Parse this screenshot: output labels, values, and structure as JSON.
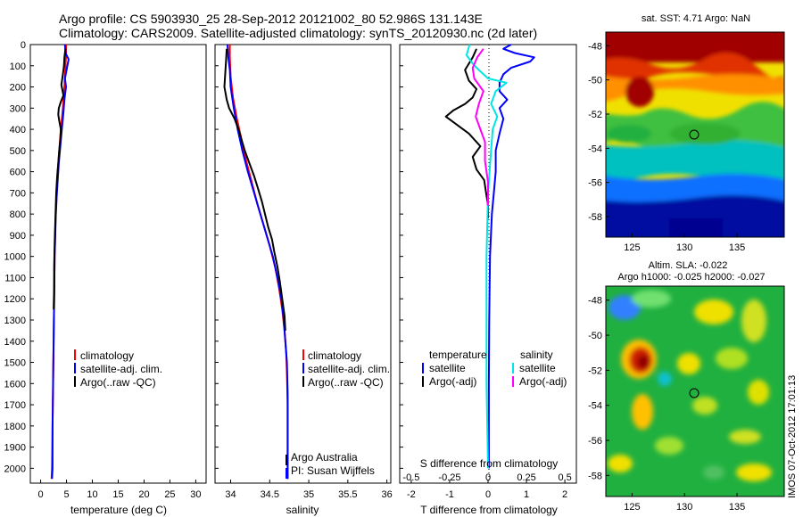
{
  "header": {
    "line1": "Argo profile: CS 5903930_25 28-Sep-2012 20121002_80 52.986S 131.143E",
    "line2": "Climatology: CARS2009. Satellite-adjusted climatology: synTS_20120930.nc (2d later)"
  },
  "colors": {
    "climatology": "#ff0000",
    "satellite": "#0000ff",
    "argo": "#000000",
    "sal_satellite": "#00e5e5",
    "sal_argo": "#ff00ff"
  },
  "panels": {
    "temperature": {
      "xlabel": "temperature (deg C)",
      "legend": [
        "climatology",
        "satellite-adj. clim.",
        "Argo(..raw -QC)"
      ]
    },
    "salinity": {
      "xlabel": "salinity",
      "legend": [
        "climatology",
        "satellite-adj. clim.",
        "Argo(..raw -QC)"
      ],
      "note1": "Argo Australia",
      "note2": "PI: Susan Wijffels"
    },
    "difference": {
      "xlabel_top": "S difference from climatology",
      "xlabel_bottom": "T difference from climatology",
      "legend_temp_title": "temperature",
      "legend_temp": [
        "satellite",
        "Argo(-adj)"
      ],
      "legend_sal_title": "salinity",
      "legend_sal": [
        "satellite",
        "Argo(-adj)"
      ]
    },
    "sst_map": {
      "title": "sat. SST: 4.71  Argo: NaN"
    },
    "sla_map": {
      "title1": "Altim. SLA: -0.022",
      "title2": "Argo h1000: -0.025 h2000: -0.027",
      "stamp": "IMOS 07-Oct-2012 17:01:13"
    }
  },
  "chart_data": [
    {
      "type": "line",
      "name": "temperature profile",
      "x_axis": "temperature (deg C)",
      "y_axis": "depth",
      "xlim": [
        -2,
        32
      ],
      "ylim": [
        2070,
        0
      ],
      "xticks": [
        0,
        5,
        10,
        15,
        20,
        25,
        30
      ],
      "yticks": [
        0,
        100,
        200,
        300,
        400,
        500,
        600,
        700,
        800,
        900,
        1000,
        1100,
        1200,
        1300,
        1400,
        1500,
        1600,
        1700,
        1800,
        1900,
        2000
      ],
      "series": [
        {
          "name": "climatology",
          "color_key": "climatology",
          "points": [
            [
              4.9,
              0
            ],
            [
              4.9,
              50
            ],
            [
              4.8,
              100
            ],
            [
              4.6,
              200
            ],
            [
              4.3,
              300
            ],
            [
              3.9,
              400
            ],
            [
              3.6,
              500
            ],
            [
              3.3,
              600
            ],
            [
              3.1,
              700
            ],
            [
              2.9,
              800
            ],
            [
              2.8,
              900
            ],
            [
              2.7,
              1000
            ],
            [
              2.6,
              1200
            ],
            [
              2.5,
              1400
            ],
            [
              2.4,
              1600
            ],
            [
              2.3,
              1800
            ],
            [
              2.2,
              2000
            ],
            [
              2.1,
              2050
            ]
          ]
        },
        {
          "name": "satellite-adj. clim.",
          "color_key": "satellite",
          "points": [
            [
              4.7,
              0
            ],
            [
              4.8,
              40
            ],
            [
              5.4,
              70
            ],
            [
              5.1,
              110
            ],
            [
              4.7,
              160
            ],
            [
              4.9,
              200
            ],
            [
              4.6,
              260
            ],
            [
              4.4,
              320
            ],
            [
              4.1,
              400
            ],
            [
              3.8,
              480
            ],
            [
              3.5,
              560
            ],
            [
              3.3,
              640
            ],
            [
              3.1,
              720
            ],
            [
              2.9,
              820
            ],
            [
              2.8,
              920
            ],
            [
              2.7,
              1000
            ],
            [
              2.6,
              1200
            ],
            [
              2.5,
              1400
            ],
            [
              2.4,
              1600
            ],
            [
              2.3,
              1800
            ],
            [
              2.3,
              2000
            ],
            [
              2.2,
              2050
            ]
          ]
        },
        {
          "name": "Argo(..raw -QC)",
          "color_key": "argo",
          "points": [
            [
              4.8,
              20
            ],
            [
              4.6,
              60
            ],
            [
              4.5,
              100
            ],
            [
              4.3,
              140
            ],
            [
              4.0,
              190
            ],
            [
              4.4,
              240
            ],
            [
              3.9,
              270
            ],
            [
              3.5,
              300
            ],
            [
              3.4,
              330
            ],
            [
              3.6,
              360
            ],
            [
              3.9,
              400
            ],
            [
              3.8,
              450
            ],
            [
              3.6,
              500
            ],
            [
              3.4,
              560
            ],
            [
              3.2,
              620
            ],
            [
              3.0,
              700
            ],
            [
              2.9,
              780
            ],
            [
              2.8,
              860
            ],
            [
              2.7,
              950
            ],
            [
              2.6,
              1050
            ],
            [
              2.6,
              1150
            ],
            [
              2.5,
              1250
            ]
          ]
        }
      ]
    },
    {
      "type": "line",
      "name": "salinity profile",
      "x_axis": "salinity",
      "y_axis": "depth",
      "xlim": [
        33.8,
        36.05
      ],
      "ylim": [
        2070,
        0
      ],
      "xticks": [
        34,
        34.5,
        35,
        35.5,
        36
      ],
      "series": [
        {
          "name": "climatology",
          "color_key": "climatology",
          "points": [
            [
              33.99,
              0
            ],
            [
              33.99,
              60
            ],
            [
              34.0,
              150
            ],
            [
              34.03,
              250
            ],
            [
              34.08,
              350
            ],
            [
              34.14,
              450
            ],
            [
              34.2,
              550
            ],
            [
              34.27,
              650
            ],
            [
              34.34,
              750
            ],
            [
              34.42,
              850
            ],
            [
              34.5,
              950
            ],
            [
              34.57,
              1050
            ],
            [
              34.62,
              1150
            ],
            [
              34.66,
              1250
            ],
            [
              34.69,
              1350
            ],
            [
              34.71,
              1450
            ],
            [
              34.72,
              1550
            ],
            [
              34.73,
              1700
            ],
            [
              34.73,
              1900
            ],
            [
              34.73,
              2050
            ]
          ]
        },
        {
          "name": "satellite-adj. clim.",
          "color_key": "satellite",
          "points": [
            [
              33.96,
              0
            ],
            [
              33.97,
              60
            ],
            [
              33.99,
              120
            ],
            [
              34.0,
              200
            ],
            [
              34.04,
              300
            ],
            [
              34.09,
              400
            ],
            [
              34.15,
              500
            ],
            [
              34.22,
              600
            ],
            [
              34.3,
              700
            ],
            [
              34.38,
              800
            ],
            [
              34.46,
              900
            ],
            [
              34.54,
              1000
            ],
            [
              34.6,
              1100
            ],
            [
              34.65,
              1200
            ],
            [
              34.68,
              1300
            ],
            [
              34.7,
              1400
            ],
            [
              34.72,
              1500
            ],
            [
              34.73,
              1650
            ],
            [
              34.73,
              1850
            ],
            [
              34.73,
              2050
            ]
          ]
        },
        {
          "name": "Argo(..raw -QC)",
          "color_key": "argo",
          "points": [
            [
              33.95,
              20
            ],
            [
              33.94,
              80
            ],
            [
              33.93,
              140
            ],
            [
              33.92,
              200
            ],
            [
              33.95,
              260
            ],
            [
              33.98,
              300
            ],
            [
              34.05,
              350
            ],
            [
              34.1,
              400
            ],
            [
              34.14,
              450
            ],
            [
              34.18,
              500
            ],
            [
              34.24,
              560
            ],
            [
              34.3,
              620
            ],
            [
              34.35,
              680
            ],
            [
              34.4,
              740
            ],
            [
              34.44,
              800
            ],
            [
              34.48,
              860
            ],
            [
              34.53,
              920
            ],
            [
              34.56,
              980
            ],
            [
              34.6,
              1050
            ],
            [
              34.63,
              1120
            ],
            [
              34.66,
              1200
            ],
            [
              34.69,
              1280
            ],
            [
              34.7,
              1350
            ]
          ]
        }
      ]
    },
    {
      "type": "line",
      "name": "difference from climatology",
      "x_axis_top": "S difference from climatology",
      "x_axis_bottom": "T difference from climatology",
      "y_axis": "depth",
      "xlim": [
        -2.3,
        2.3
      ],
      "ylim": [
        2070,
        0
      ],
      "xticks_bottom": [
        -2,
        -1,
        0,
        1,
        2
      ],
      "xticks_top_labels": [
        "-0.5",
        "-0.25",
        "0",
        "0.25",
        "0.5"
      ],
      "series": [
        {
          "name": "temperature satellite",
          "color_key": "satellite",
          "points": [
            [
              0.6,
              0
            ],
            [
              0.4,
              20
            ],
            [
              0.7,
              40
            ],
            [
              1.2,
              60
            ],
            [
              1.1,
              80
            ],
            [
              0.6,
              110
            ],
            [
              0.4,
              140
            ],
            [
              0.3,
              180
            ],
            [
              0.3,
              220
            ],
            [
              0.5,
              260
            ],
            [
              0.3,
              300
            ],
            [
              0.4,
              350
            ],
            [
              0.3,
              420
            ],
            [
              0.2,
              500
            ],
            [
              0.2,
              600
            ],
            [
              0.15,
              700
            ],
            [
              0.1,
              800
            ],
            [
              0.05,
              1000
            ],
            [
              0.03,
              1300
            ],
            [
              0.02,
              1600
            ],
            [
              0.02,
              2000
            ]
          ]
        },
        {
          "name": "temperature Argo(-adj)",
          "color_key": "argo",
          "points": [
            [
              -0.3,
              20
            ],
            [
              -0.4,
              60
            ],
            [
              -0.6,
              120
            ],
            [
              -0.5,
              170
            ],
            [
              -0.3,
              210
            ],
            [
              -0.4,
              250
            ],
            [
              -0.6,
              280
            ],
            [
              -0.9,
              310
            ],
            [
              -1.1,
              340
            ],
            [
              -0.8,
              380
            ],
            [
              -0.5,
              420
            ],
            [
              -0.2,
              480
            ],
            [
              -0.4,
              530
            ],
            [
              -0.3,
              590
            ],
            [
              -0.1,
              640
            ],
            [
              -0.05,
              700
            ],
            [
              0.0,
              760
            ],
            [
              0.0,
              820
            ]
          ]
        },
        {
          "name": "salinity satellite",
          "color_key": "sal_satellite",
          "points": [
            [
              -0.12,
              0
            ],
            [
              -0.14,
              50
            ],
            [
              -0.1,
              90
            ],
            [
              -0.06,
              120
            ],
            [
              0.0,
              160
            ],
            [
              0.12,
              180
            ],
            [
              0.05,
              220
            ],
            [
              0.02,
              280
            ],
            [
              0.06,
              340
            ],
            [
              0.03,
              400
            ],
            [
              0.02,
              500
            ],
            [
              0.0,
              700
            ],
            [
              -0.01,
              1000
            ],
            [
              -0.01,
              1300
            ],
            [
              -0.01,
              1600
            ],
            [
              0.0,
              2000
            ]
          ]
        },
        {
          "name": "salinity Argo(-adj)",
          "color_key": "sal_argo",
          "points": [
            [
              -0.03,
              20
            ],
            [
              -0.07,
              60
            ],
            [
              -0.1,
              110
            ],
            [
              -0.09,
              160
            ],
            [
              -0.03,
              220
            ],
            [
              -0.06,
              280
            ],
            [
              -0.08,
              340
            ],
            [
              -0.05,
              400
            ],
            [
              -0.02,
              460
            ],
            [
              -0.02,
              550
            ],
            [
              0.0,
              650
            ],
            [
              0.0,
              760
            ]
          ]
        }
      ]
    },
    {
      "type": "heatmap",
      "name": "sat. SST map",
      "xlim": [
        122.5,
        139.5
      ],
      "ylim": [
        -59.2,
        -47.2
      ],
      "xticks": [
        125,
        130,
        135
      ],
      "yticks": [
        -48,
        -50,
        -52,
        -54,
        -56,
        -58
      ],
      "colormap": "jet",
      "profile_marker": {
        "lon": 131.143,
        "lat": -52.986
      }
    },
    {
      "type": "heatmap",
      "name": "Altim. SLA map",
      "xlim": [
        122.5,
        139.5
      ],
      "ylim": [
        -59.2,
        -47.2
      ],
      "xticks": [
        125,
        130,
        135
      ],
      "yticks": [
        -48,
        -50,
        -52,
        -54,
        -56,
        -58
      ],
      "colormap": "jet",
      "profile_marker": {
        "lon": 131.143,
        "lat": -52.986
      }
    }
  ]
}
